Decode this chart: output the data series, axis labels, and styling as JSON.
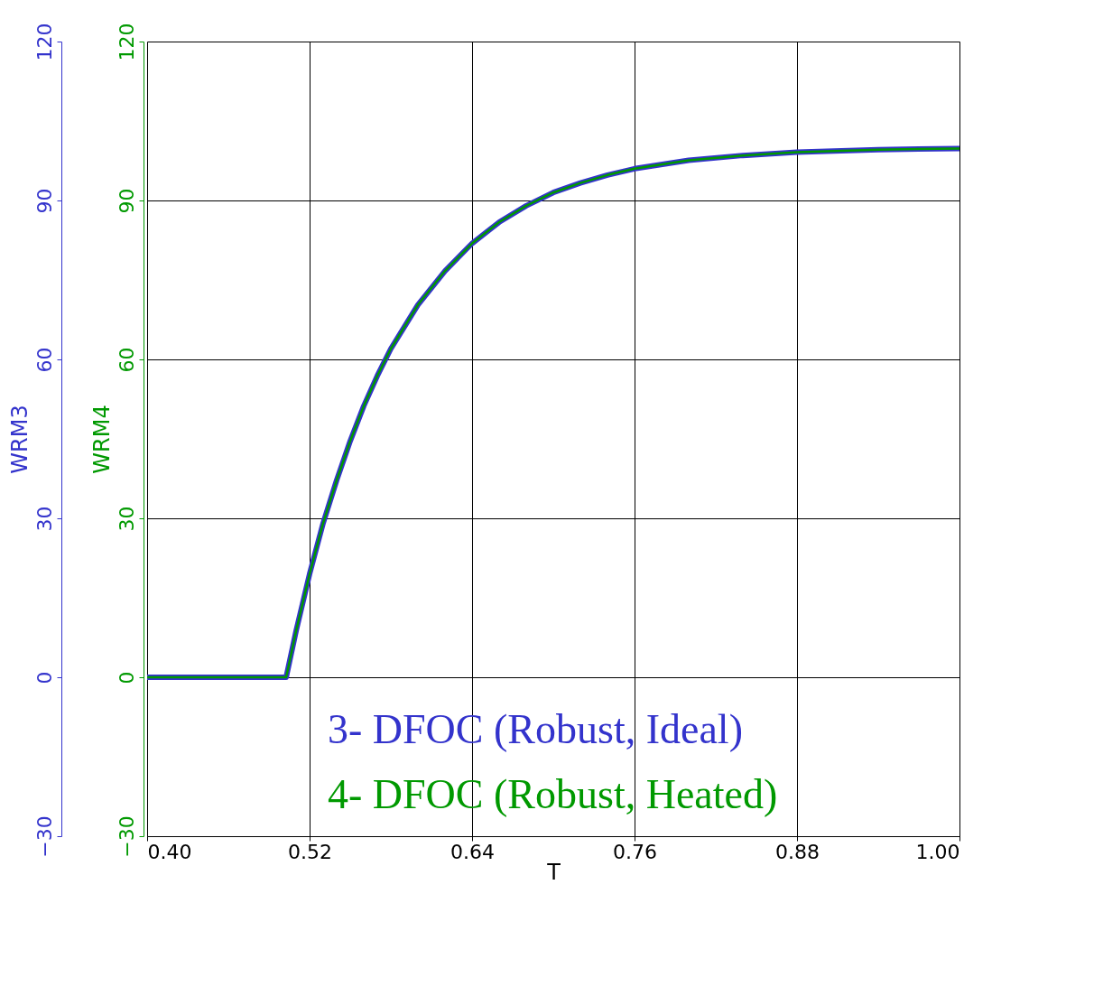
{
  "chart_data": {
    "type": "line",
    "xlabel": "T",
    "ylabel": "WRM3",
    "y2label": "WRM4",
    "x": [
      0.4,
      0.45,
      0.5027,
      0.51,
      0.52,
      0.53,
      0.54,
      0.55,
      0.56,
      0.57,
      0.58,
      0.6,
      0.62,
      0.64,
      0.66,
      0.68,
      0.7,
      0.72,
      0.74,
      0.76,
      0.8,
      0.84,
      0.88,
      0.94,
      1.0
    ],
    "series": [
      {
        "name": "3- DFOC (Robust, Ideal)",
        "color": "#3333cc",
        "values": [
          0,
          0,
          0,
          8.7,
          19.5,
          29.1,
          37.2,
          44.6,
          51.2,
          56.9,
          62.0,
          70.3,
          76.7,
          81.9,
          85.9,
          89.0,
          91.5,
          93.3,
          94.8,
          96.0,
          97.6,
          98.5,
          99.1,
          99.6,
          99.8
        ]
      },
      {
        "name": "4- DFOC (Robust, Heated)",
        "color": "#009900",
        "axis": "y2",
        "values": [
          0,
          0,
          0,
          8.7,
          19.5,
          29.1,
          37.2,
          44.6,
          51.2,
          56.9,
          62.0,
          70.3,
          76.7,
          81.9,
          85.9,
          89.0,
          91.5,
          93.3,
          94.8,
          96.0,
          97.6,
          98.5,
          99.1,
          99.6,
          99.8
        ]
      }
    ],
    "xlim": [
      0.4,
      1.0
    ],
    "xticks": [
      {
        "value": 0.4,
        "label": "0.40"
      },
      {
        "value": 0.52,
        "label": "0.52"
      },
      {
        "value": 0.64,
        "label": "0.64"
      },
      {
        "value": 0.76,
        "label": "0.76"
      },
      {
        "value": 0.88,
        "label": "0.88"
      },
      {
        "value": 1.0,
        "label": "1.00"
      }
    ],
    "ylim": [
      -30,
      120
    ],
    "yticks": [
      -30,
      0,
      30,
      60,
      90,
      120
    ],
    "y2lim": [
      -30,
      120
    ],
    "y2ticks": [
      -30,
      0,
      30,
      60,
      90,
      120
    ],
    "grid": true,
    "legend": "bottom right",
    "marker": "none",
    "line_style": "solid"
  }
}
